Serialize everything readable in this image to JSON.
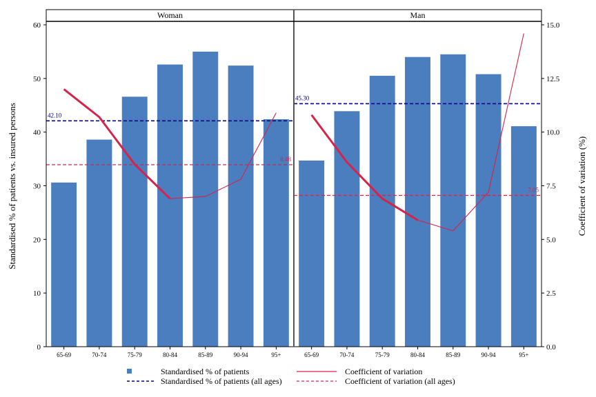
{
  "chart_data": {
    "type": "bar",
    "ylabel_left": "Standardised % of patients vs. insured persons",
    "ylabel_right": "Coefficient of variation (%)",
    "ylim_left": [
      0,
      60
    ],
    "ylim_right": [
      0,
      15
    ],
    "yticks_left": [
      "0",
      "10",
      "20",
      "30",
      "40",
      "50",
      "60"
    ],
    "yticks_right": [
      "0.0",
      "2.5",
      "5.0",
      "7.5",
      "10.0",
      "12.5",
      "15.0"
    ],
    "categories": [
      "65-69",
      "70-74",
      "75-79",
      "80-84",
      "85-89",
      "90-94",
      "95+"
    ],
    "colors": {
      "bar": "#4a7ebf",
      "cv_line": "#d6234a",
      "patients_ref": "#00008b",
      "cv_ref": "#d6234a"
    },
    "panels": [
      {
        "title": "Woman",
        "bars": [
          30.6,
          38.6,
          46.6,
          52.6,
          55.0,
          52.4,
          42.4
        ],
        "cv": [
          12.0,
          10.7,
          8.5,
          6.9,
          7.0,
          7.8,
          10.9
        ],
        "cv_thick_until_index": 3,
        "ref_patients": 42.1,
        "ref_patients_label": "42.10",
        "ref_cv": 8.48,
        "ref_cv_label": "8.48"
      },
      {
        "title": "Man",
        "bars": [
          34.7,
          43.9,
          50.5,
          54.0,
          54.5,
          50.8,
          41.1
        ],
        "cv": [
          10.8,
          8.6,
          6.9,
          5.9,
          5.4,
          7.2,
          14.6
        ],
        "cv_thick_until_index": 3,
        "ref_patients": 45.3,
        "ref_patients_label": "45.30",
        "ref_cv": 7.05,
        "ref_cv_label": "7.05"
      }
    ],
    "legend": [
      {
        "label": "Standardised % of patients",
        "marker": "square"
      },
      {
        "label": "Coefficient of variation",
        "marker": "line"
      },
      {
        "label": "Standardised % of patients (all ages)",
        "marker": "dash-blue"
      },
      {
        "label": "Coefficient of variation (all ages)",
        "marker": "dash-red"
      }
    ]
  }
}
